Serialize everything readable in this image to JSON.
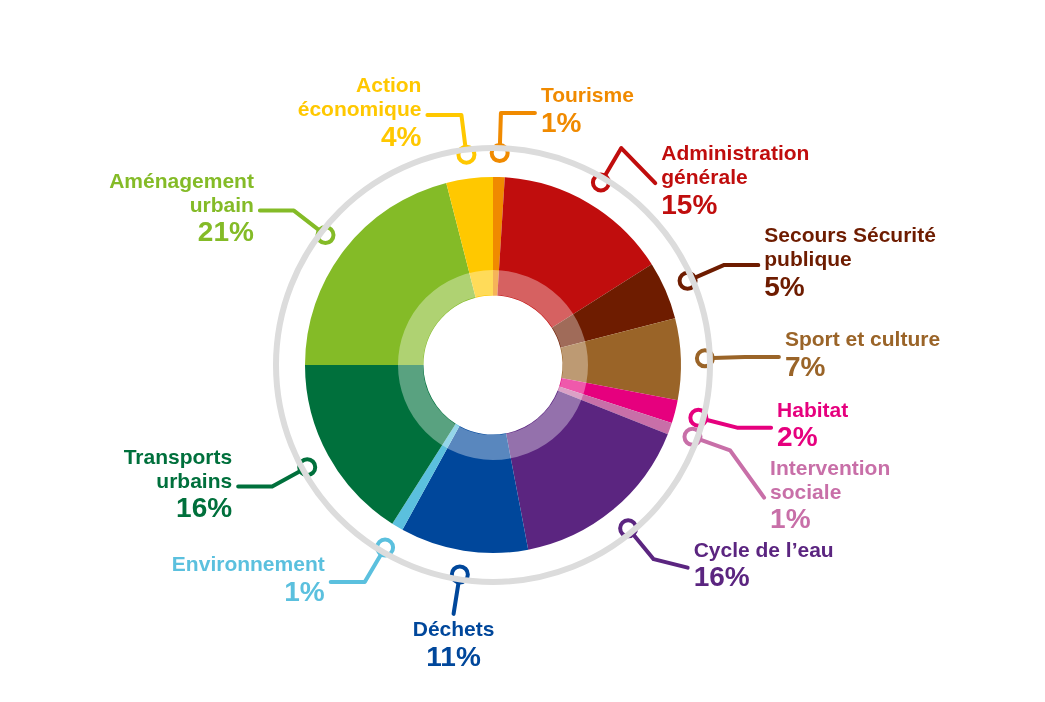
{
  "chart_data": {
    "type": "donut",
    "categories": [
      "Tourisme",
      "Administration générale",
      "Secours Sécurité publique",
      "Sport et culture",
      "Habitat",
      "Intervention sociale",
      "Cycle de l’eau",
      "Déchets",
      "Environnement",
      "Transports urbains",
      "Aménagement urbain",
      "Action économique"
    ],
    "values": [
      1,
      15,
      5,
      7,
      2,
      1,
      16,
      11,
      1,
      16,
      21,
      4
    ],
    "colors": [
      "#f08a00",
      "#c00d0d",
      "#6e1c00",
      "#9a6428",
      "#e6007e",
      "#c86fa8",
      "#5b2580",
      "#00479b",
      "#5bc0de",
      "#00703c",
      "#84bb27",
      "#ffc800"
    ],
    "value_labels": [
      "1%",
      "15%",
      "5%",
      "7%",
      "2%",
      "1%",
      "16%",
      "11%",
      "1%",
      "16%",
      "21%",
      "4%"
    ],
    "legend": false
  }
}
